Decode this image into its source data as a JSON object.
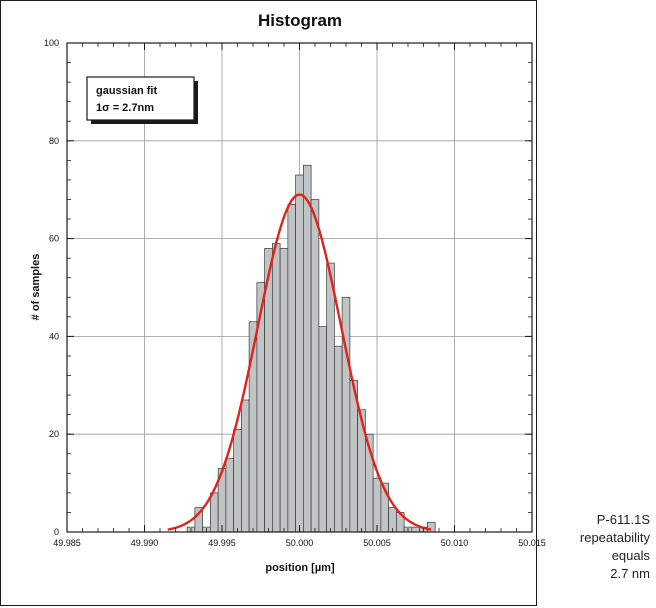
{
  "chart_data": {
    "type": "bar",
    "title": "Histogram",
    "xlabel": "position  [µm]",
    "ylabel": "# of samples",
    "xlim": [
      49.985,
      50.015
    ],
    "ylim": [
      0,
      100
    ],
    "x_ticks": [
      "49.985",
      "49.990",
      "49.995",
      "50.000",
      "50.005",
      "50.010",
      "50.015"
    ],
    "y_ticks": [
      "0",
      "20",
      "40",
      "60",
      "80",
      "100"
    ],
    "grid": true,
    "bin_width": 0.0005,
    "bars": {
      "x": [
        49.993,
        49.9935,
        49.994,
        49.9945,
        49.995,
        49.9955,
        49.996,
        49.9965,
        49.997,
        49.9975,
        49.998,
        49.9985,
        49.999,
        49.9995,
        50.0,
        50.0005,
        50.001,
        50.0015,
        50.002,
        50.0025,
        50.003,
        50.0035,
        50.004,
        50.0045,
        50.005,
        50.0055,
        50.006,
        50.0065,
        50.007,
        50.0075,
        50.008,
        50.0085
      ],
      "values": [
        1,
        5,
        1,
        8,
        13,
        15,
        21,
        27,
        43,
        51,
        58,
        59,
        58,
        67,
        73,
        75,
        68,
        42,
        55,
        38,
        48,
        31,
        25,
        20,
        11,
        10,
        5,
        4,
        1,
        1,
        1,
        2
      ]
    },
    "fit": {
      "name": "gaussian fit",
      "color": "#e0231c",
      "mean": 50.0,
      "sigma": 0.0027,
      "peak": 69,
      "sigma_label": "1σ = 2.7nm"
    },
    "legend_title": "gaussian fit",
    "bar_fill": "#c0c4c4",
    "bar_stroke": "#3a3a3a"
  },
  "caption": {
    "lines": [
      "P-611.1S",
      "repeatability",
      "equals",
      "2.7 nm"
    ]
  }
}
